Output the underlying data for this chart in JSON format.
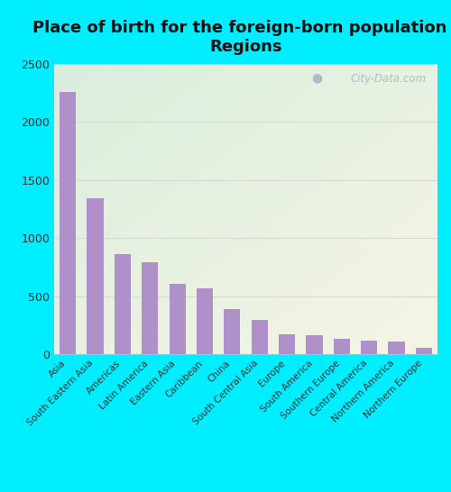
{
  "title": "Place of birth for the foreign-born population -\nRegions",
  "categories": [
    "Asia",
    "South Eastern Asia",
    "Americas",
    "Latin America",
    "Eastern Asia",
    "Caribbean",
    "China",
    "South Central Asia",
    "Europe",
    "South America",
    "Southern Europe",
    "Central America",
    "Northern America",
    "Northern Europe"
  ],
  "values": [
    2260,
    1340,
    860,
    790,
    610,
    565,
    390,
    295,
    175,
    165,
    130,
    115,
    110,
    55
  ],
  "bar_color": "#b090c8",
  "background_outer": "#00eeff",
  "background_inner_tl": "#daeedd",
  "background_inner_br": "#f8f8ef",
  "ylim": [
    0,
    2500
  ],
  "yticks": [
    0,
    500,
    1000,
    1500,
    2000,
    2500
  ],
  "title_fontsize": 13,
  "watermark": "City-Data.com",
  "grid_color": "#d8d8d8"
}
